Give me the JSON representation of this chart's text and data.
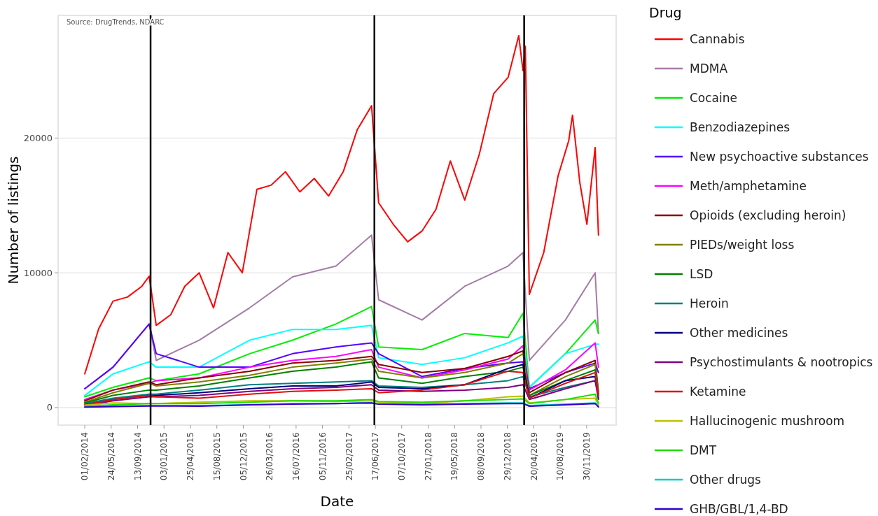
{
  "chart_data": {
    "type": "line",
    "xlabel": "Date",
    "ylabel": "Number of listings",
    "legend_title": "Drug",
    "legend": "right",
    "grid": "y",
    "line_style": "solid",
    "annotations": [
      "Source: DrugTrends, NDARC"
    ],
    "xlim": [
      "2013-10-11",
      "2020-04-03"
    ],
    "ylim": [
      -1300,
      29100
    ],
    "yticks": [
      0,
      10000,
      20000
    ],
    "xticks": [
      {
        "value": "2014-02-01",
        "label": "01/02/2014"
      },
      {
        "value": "2014-05-24",
        "label": "24/05/2014"
      },
      {
        "value": "2014-09-13",
        "label": "13/09/2014"
      },
      {
        "value": "2015-01-03",
        "label": "03/01/2015"
      },
      {
        "value": "2015-04-25",
        "label": "25/04/2015"
      },
      {
        "value": "2015-08-15",
        "label": "15/08/2015"
      },
      {
        "value": "2015-12-05",
        "label": "05/12/2015"
      },
      {
        "value": "2016-03-26",
        "label": "26/03/2016"
      },
      {
        "value": "2016-07-16",
        "label": "16/07/2016"
      },
      {
        "value": "2016-11-05",
        "label": "05/11/2016"
      },
      {
        "value": "2017-02-25",
        "label": "25/02/2017"
      },
      {
        "value": "2017-06-17",
        "label": "17/06/2017"
      },
      {
        "value": "2017-10-07",
        "label": "07/10/2017"
      },
      {
        "value": "2018-01-27",
        "label": "27/01/2018"
      },
      {
        "value": "2018-05-19",
        "label": "19/05/2018"
      },
      {
        "value": "2018-09-08",
        "label": "08/09/2018"
      },
      {
        "value": "2018-12-29",
        "label": "29/12/2018"
      },
      {
        "value": "2019-04-20",
        "label": "20/04/2019"
      },
      {
        "value": "2019-08-10",
        "label": "10/08/2019"
      },
      {
        "value": "2019-11-30",
        "label": "30/11/2019"
      }
    ],
    "ref_lines": [
      {
        "axis": "x",
        "value": "2014-11-07",
        "color": "#000000"
      },
      {
        "axis": "x",
        "value": "2017-06-13",
        "color": "#000000"
      },
      {
        "axis": "x",
        "value": "2019-03-10",
        "color": "#000000"
      }
    ],
    "x": [
      "2014-02-01",
      "2014-06-01",
      "2014-11-01",
      "2014-12-01",
      "2015-06-01",
      "2016-01-01",
      "2016-07-01",
      "2017-01-01",
      "2017-06-01",
      "2017-07-01",
      "2018-01-01",
      "2018-07-01",
      "2019-01-01",
      "2019-03-05",
      "2019-04-01",
      "2019-09-01",
      "2020-01-05",
      "2020-01-19"
    ],
    "series": [
      {
        "name": "Cannabis",
        "color": "#ff0000",
        "x": [
          "2014-02-01",
          "2014-04-01",
          "2014-06-01",
          "2014-08-01",
          "2014-10-01",
          "2014-11-01",
          "2014-12-01",
          "2015-02-01",
          "2015-04-01",
          "2015-06-01",
          "2015-08-01",
          "2015-10-01",
          "2015-12-01",
          "2016-02-01",
          "2016-04-01",
          "2016-06-01",
          "2016-08-01",
          "2016-10-01",
          "2016-12-01",
          "2017-02-01",
          "2017-04-01",
          "2017-06-01",
          "2017-07-01",
          "2017-09-01",
          "2017-11-01",
          "2018-01-01",
          "2018-03-01",
          "2018-05-01",
          "2018-07-01",
          "2018-09-01",
          "2018-11-01",
          "2019-01-01",
          "2019-02-15",
          "2019-03-05",
          "2019-03-15",
          "2019-04-01",
          "2019-06-01",
          "2019-08-01",
          "2019-09-15",
          "2019-10-01",
          "2019-11-01",
          "2019-12-01",
          "2020-01-05",
          "2020-01-19"
        ],
        "values": [
          2500,
          5850,
          7900,
          8200,
          9000,
          9750,
          6100,
          6900,
          9000,
          10000,
          7400,
          11500,
          10000,
          16200,
          16500,
          17500,
          16000,
          17000,
          15700,
          17500,
          20600,
          22400,
          15200,
          13600,
          12300,
          13100,
          14700,
          18300,
          15400,
          18800,
          23300,
          24500,
          27600,
          25000,
          26800,
          8400,
          11500,
          17200,
          19800,
          21700,
          16700,
          13600,
          19300,
          12800
        ]
      },
      {
        "name": "MDMA",
        "color": "#a67ba6",
        "values": [
          1400,
          3000,
          6200,
          3500,
          5000,
          7400,
          9700,
          10500,
          12800,
          8000,
          6500,
          9000,
          10500,
          11500,
          3500,
          6500,
          10000,
          5500
        ]
      },
      {
        "name": "Cocaine",
        "color": "#00ee00",
        "values": [
          800,
          1500,
          2200,
          2000,
          2500,
          4000,
          5000,
          6200,
          7500,
          4500,
          4300,
          5500,
          5200,
          7000,
          1500,
          4000,
          6500,
          5500
        ]
      },
      {
        "name": "Benzodiazepines",
        "color": "#00ffff",
        "values": [
          900,
          2500,
          3400,
          3000,
          3000,
          5000,
          5800,
          5800,
          6100,
          3700,
          3200,
          3700,
          4800,
          5300,
          1500,
          4000,
          4700,
          4700
        ]
      },
      {
        "name": "New psychoactive substances",
        "color": "#5500ff",
        "values": [
          1400,
          3000,
          6200,
          4000,
          3000,
          3000,
          4000,
          4500,
          4800,
          4000,
          2300,
          2900,
          3300,
          3400,
          1400,
          2600,
          3300,
          2600
        ]
      },
      {
        "name": "Meth/amphetamine",
        "color": "#ff00ff",
        "values": [
          600,
          1300,
          1800,
          2000,
          2200,
          3000,
          3500,
          3800,
          4300,
          3000,
          2200,
          2800,
          3600,
          4600,
          1300,
          2800,
          4800,
          3000
        ]
      },
      {
        "name": "Opioids (excluding heroin)",
        "color": "#8b0000",
        "values": [
          500,
          1300,
          1900,
          1700,
          2200,
          2700,
          3300,
          3500,
          3800,
          3200,
          2600,
          2900,
          3800,
          4200,
          1100,
          2600,
          3500,
          1200
        ]
      },
      {
        "name": "PIEDs/weight loss",
        "color": "#808000",
        "values": [
          400,
          1100,
          1800,
          1600,
          1900,
          2400,
          3000,
          3300,
          3600,
          2700,
          2200,
          2600,
          3300,
          4000,
          900,
          2300,
          3200,
          1000
        ]
      },
      {
        "name": "LSD",
        "color": "#008000",
        "values": [
          350,
          900,
          1300,
          1300,
          1600,
          2200,
          2700,
          3000,
          3400,
          2200,
          1800,
          2300,
          2700,
          3000,
          900,
          2000,
          2800,
          1000
        ]
      },
      {
        "name": "Heroin",
        "color": "#008080",
        "values": [
          300,
          700,
          1000,
          1000,
          1300,
          1700,
          1800,
          1900,
          2000,
          1600,
          1500,
          1700,
          2000,
          2300,
          800,
          1500,
          2000,
          900
        ]
      },
      {
        "name": "Other medicines",
        "color": "#000080",
        "values": [
          200,
          600,
          900,
          900,
          1100,
          1400,
          1600,
          1600,
          1900,
          1500,
          1400,
          1700,
          2900,
          3200,
          700,
          2000,
          2300,
          700
        ]
      },
      {
        "name": "Psychostimulants & nootropics",
        "color": "#800080",
        "values": [
          150,
          500,
          800,
          800,
          900,
          1200,
          1400,
          1500,
          1700,
          1300,
          1200,
          1300,
          1500,
          1700,
          600,
          1400,
          2000,
          600
        ]
      },
      {
        "name": "Ketamine",
        "color": "#dd1111",
        "values": [
          200,
          600,
          900,
          800,
          700,
          1000,
          1200,
          1300,
          1400,
          1100,
          1300,
          1700,
          2700,
          2600,
          700,
          1800,
          2600,
          900
        ]
      },
      {
        "name": "Hallucinogenic mushroom",
        "color": "#bfbf00",
        "values": [
          180,
          350,
          300,
          300,
          400,
          500,
          500,
          450,
          500,
          400,
          300,
          500,
          800,
          850,
          350,
          600,
          700,
          200
        ]
      },
      {
        "name": "DMT",
        "color": "#22dd00",
        "values": [
          100,
          200,
          300,
          300,
          300,
          400,
          500,
          500,
          600,
          450,
          400,
          500,
          600,
          650,
          300,
          600,
          1000,
          300
        ]
      },
      {
        "name": "Other drugs",
        "color": "#00cccc",
        "values": [
          50,
          100,
          150,
          150,
          150,
          200,
          300,
          300,
          350,
          250,
          250,
          300,
          350,
          350,
          150,
          250,
          350,
          100
        ]
      },
      {
        "name": "GHB/GBL/1,4-BD",
        "color": "#3300cc",
        "values": [
          30,
          80,
          120,
          120,
          100,
          200,
          250,
          300,
          350,
          250,
          200,
          250,
          300,
          300,
          100,
          200,
          300,
          50
        ]
      }
    ]
  }
}
